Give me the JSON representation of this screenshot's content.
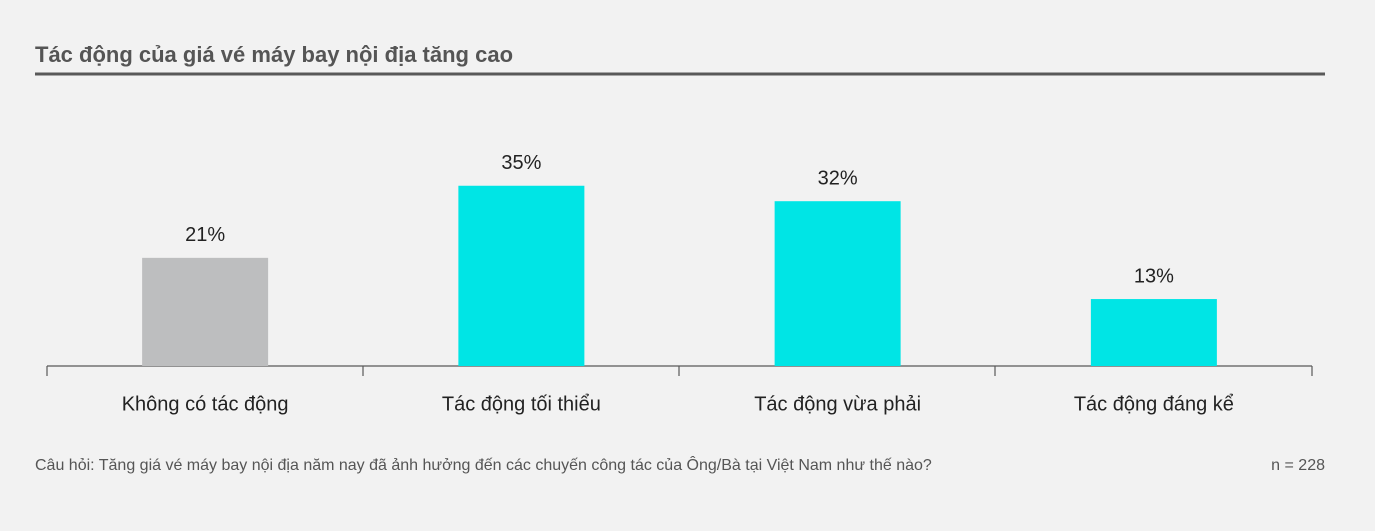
{
  "chart_data": {
    "type": "bar",
    "title": "Tác động của giá vé máy bay nội địa tăng cao",
    "categories": [
      "Không có tác động",
      "Tác động tối thiểu",
      "Tác động vừa phải",
      "Tác động đáng kể"
    ],
    "values": [
      21,
      35,
      32,
      13
    ],
    "value_labels": [
      "21%",
      "35%",
      "32%",
      "13%"
    ],
    "colors": [
      "#bdbebf",
      "#00e5e5",
      "#00e5e5",
      "#00e5e5"
    ],
    "note": "Câu hỏi: Tăng giá vé máy bay nội địa năm nay đã ảnh hưởng đến các chuyến công tác của Ông/Bà tại Việt Nam như thế nào?",
    "sample": "n = 228"
  }
}
